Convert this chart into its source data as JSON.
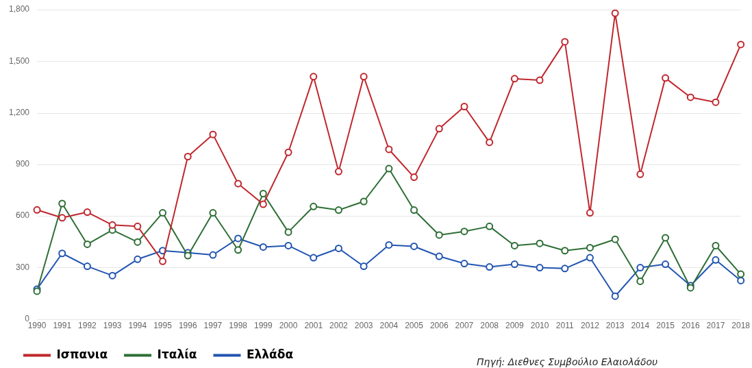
{
  "chart_data": {
    "type": "line",
    "categories": [
      "1990",
      "1991",
      "1992",
      "1993",
      "1994",
      "1995",
      "1996",
      "1997",
      "1998",
      "1999",
      "2000",
      "2001",
      "2002",
      "2003",
      "2004",
      "2005",
      "2006",
      "2007",
      "2008",
      "2009",
      "2010",
      "2011",
      "2012",
      "2013",
      "2014",
      "2015",
      "2016",
      "2017",
      "2018"
    ],
    "series": [
      {
        "name": "Ισπανια",
        "color": "#c0272d",
        "values": [
          635,
          589,
          622,
          547,
          539,
          336,
          945,
          1074,
          788,
          668,
          970,
          1410,
          858,
          1410,
          987,
          825,
          1107,
          1236,
          1028,
          1398,
          1389,
          1613,
          618,
          1779,
          842,
          1402,
          1290,
          1261,
          1597
        ]
      },
      {
        "name": "Ιταλία",
        "color": "#2e6e35",
        "values": [
          162,
          672,
          435,
          518,
          448,
          618,
          369,
          618,
          402,
          730,
          506,
          655,
          634,
          684,
          875,
          634,
          489,
          510,
          539,
          427,
          440,
          398,
          415,
          464,
          220,
          473,
          182,
          427,
          261
        ]
      },
      {
        "name": "Ελλάδα",
        "color": "#2255b0",
        "values": [
          174,
          382,
          307,
          253,
          348,
          398,
          386,
          373,
          469,
          419,
          427,
          357,
          411,
          307,
          431,
          423,
          365,
          323,
          303,
          319,
          299,
          294,
          357,
          133,
          299,
          319,
          195,
          344,
          224
        ]
      }
    ],
    "ylim": [
      0,
      1800
    ],
    "yticks": [
      0,
      300,
      600,
      900,
      {
        "value": 1200,
        "label": "1,200"
      },
      {
        "value": 1500,
        "label": "1,500"
      },
      {
        "value": 1800,
        "label": "1,800"
      }
    ],
    "grid": "y",
    "legend": "bottom left",
    "marker": "circle",
    "line_style": "solid",
    "annotations": [
      "Πηγή: Διεθνες Συμβούλιο Ελαιολάδου"
    ]
  }
}
